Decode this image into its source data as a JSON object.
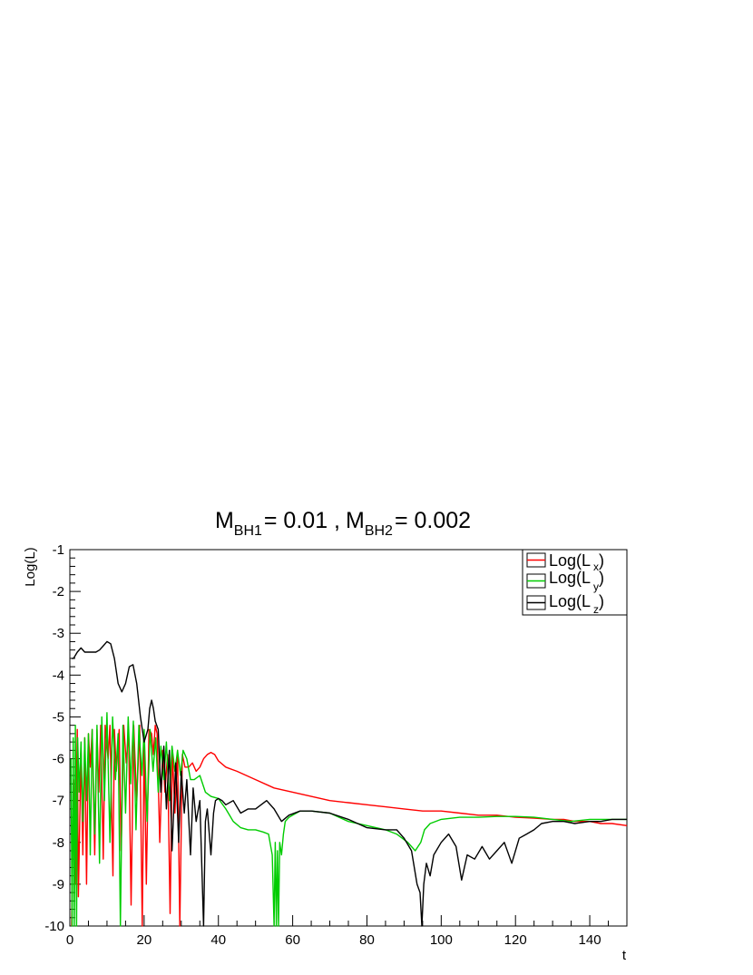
{
  "chart_data": {
    "type": "line",
    "title": {
      "m1_symbol": "M",
      "m1_subscript": "BH1",
      "m1_value": "= 0.01 ,",
      "m2_symbol": "M",
      "m2_subscript": "BH2",
      "m2_value": "= 0.002"
    },
    "xlabel": "t",
    "ylabel": "Log(L)",
    "xlim": [
      0,
      150
    ],
    "ylim": [
      -10,
      -1
    ],
    "xticks": [
      "0",
      "20",
      "40",
      "60",
      "80",
      "100",
      "120",
      "140"
    ],
    "yticks": [
      "-1",
      "-2",
      "-3",
      "-4",
      "-5",
      "-6",
      "-7",
      "-8",
      "-9",
      "-10"
    ],
    "legend": {
      "placement": "top-right"
    },
    "series": [
      {
        "name_main": "Log(L",
        "name_sub": "x",
        "name_end": ")",
        "color": "#ff0000",
        "x": [
          0.5,
          1.0,
          1.4,
          2.0,
          2.3,
          3.0,
          3.5,
          4.0,
          4.5,
          5.0,
          5.5,
          6.0,
          6.7,
          7.3,
          7.8,
          8.3,
          9.0,
          9.5,
          10.3,
          10.8,
          11.6,
          12.0,
          12.5,
          13.3,
          13.8,
          14.5,
          15.2,
          15.8,
          16.5,
          17.2,
          18.0,
          18.8,
          19.5,
          20.0,
          20.6,
          21.3,
          22.0,
          22.5,
          23.0,
          23.5,
          24.2,
          25.0,
          25.6,
          26.3,
          27.0,
          27.6,
          28.3,
          29.0,
          29.6,
          30.3,
          31.0,
          32.0,
          33.0,
          34.0,
          35.0,
          36.0,
          37.0,
          38.0,
          39.0,
          40.0,
          42.0,
          45.0,
          50.0,
          55.0,
          60.0,
          65.0,
          70.0,
          75.0,
          80.0,
          85.0,
          90.0,
          95.0,
          100.0,
          105.0,
          110.0,
          115.0,
          120.0,
          125.0,
          130.0,
          133.0,
          136.0,
          140.0,
          143.0,
          146.0,
          150.0
        ],
        "y": [
          -10.0,
          -6.5,
          -9.0,
          -5.3,
          -9.3,
          -5.8,
          -8.3,
          -5.5,
          -9.0,
          -5.4,
          -6.2,
          -5.3,
          -8.3,
          -5.3,
          -6.8,
          -5.2,
          -8.4,
          -5.2,
          -6.0,
          -5.2,
          -8.8,
          -5.3,
          -6.3,
          -5.3,
          -8.2,
          -5.2,
          -6.1,
          -5.3,
          -9.5,
          -5.2,
          -7.0,
          -5.2,
          -10.0,
          -5.5,
          -9.0,
          -5.3,
          -5.4,
          -5.9,
          -5.2,
          -5.4,
          -8.0,
          -5.8,
          -6.8,
          -5.9,
          -9.7,
          -5.8,
          -7.3,
          -5.8,
          -10.0,
          -5.9,
          -6.2,
          -6.2,
          -6.1,
          -6.3,
          -6.2,
          -6.0,
          -5.9,
          -5.85,
          -5.9,
          -6.05,
          -6.2,
          -6.3,
          -6.5,
          -6.7,
          -6.8,
          -6.9,
          -7.0,
          -7.05,
          -7.1,
          -7.15,
          -7.2,
          -7.25,
          -7.25,
          -7.3,
          -7.35,
          -7.35,
          -7.4,
          -7.42,
          -7.45,
          -7.45,
          -7.5,
          -7.5,
          -7.55,
          -7.55,
          -7.6
        ]
      },
      {
        "name_main": "Log(L",
        "name_sub": "y",
        "name_end": ")",
        "color": "#00cc00",
        "x": [
          0.3,
          0.6,
          0.9,
          1.2,
          1.5,
          1.8,
          2.1,
          2.5,
          3.0,
          3.5,
          4.0,
          4.5,
          5.0,
          5.5,
          6.0,
          6.7,
          7.3,
          8.0,
          8.6,
          9.3,
          10.0,
          10.8,
          11.5,
          12.3,
          13.0,
          13.6,
          14.3,
          15.0,
          15.7,
          16.4,
          17.1,
          17.8,
          18.6,
          19.4,
          20.0,
          20.8,
          21.6,
          22.4,
          23.1,
          23.8,
          24.5,
          25.3,
          26.0,
          26.8,
          27.5,
          28.3,
          29.0,
          29.8,
          30.5,
          31.5,
          32.5,
          33.5,
          35.0,
          36.5,
          38.0,
          40.0,
          42.0,
          44.0,
          46.0,
          48.0,
          50.0,
          52.0,
          53.5,
          54.5,
          55.0,
          55.3,
          55.6,
          55.9,
          56.2,
          56.5,
          57.0,
          57.5,
          58.0,
          59.0,
          60.0,
          62.0,
          65.0,
          70.0,
          75.0,
          80.0,
          85.0,
          88.0,
          91.0,
          93.0,
          94.5,
          95.5,
          97.0,
          100.0,
          105.0,
          110.0,
          115.0,
          120.0,
          125.0,
          130.0,
          135.0,
          140.0,
          145.0,
          150.0
        ],
        "y": [
          -6.0,
          -10.0,
          -5.5,
          -10.0,
          -5.2,
          -10.0,
          -5.5,
          -6.8,
          -5.6,
          -7.5,
          -5.5,
          -7.0,
          -5.4,
          -8.3,
          -5.3,
          -7.8,
          -5.2,
          -8.5,
          -5.0,
          -7.0,
          -4.9,
          -8.0,
          -5.0,
          -6.5,
          -5.4,
          -10.0,
          -5.2,
          -7.3,
          -5.0,
          -6.6,
          -5.1,
          -7.7,
          -5.2,
          -6.4,
          -5.3,
          -7.5,
          -5.3,
          -6.3,
          -5.5,
          -6.8,
          -5.7,
          -6.5,
          -5.6,
          -7.0,
          -5.7,
          -6.3,
          -5.8,
          -6.4,
          -5.8,
          -6.0,
          -6.5,
          -6.5,
          -6.4,
          -6.8,
          -6.9,
          -6.95,
          -7.2,
          -7.5,
          -7.65,
          -7.7,
          -7.7,
          -7.75,
          -7.8,
          -8.3,
          -10.0,
          -8.0,
          -10.0,
          -8.2,
          -10.0,
          -8.0,
          -8.3,
          -7.8,
          -7.5,
          -7.4,
          -7.35,
          -7.25,
          -7.25,
          -7.3,
          -7.5,
          -7.6,
          -7.7,
          -7.8,
          -8.0,
          -8.2,
          -8.0,
          -7.7,
          -7.55,
          -7.45,
          -7.4,
          -7.4,
          -7.38,
          -7.38,
          -7.4,
          -7.45,
          -7.5,
          -7.45,
          -7.45,
          -7.45
        ]
      },
      {
        "name_main": "Log(L",
        "name_sub": "z",
        "name_end": ")",
        "color": "#000000",
        "x": [
          0.5,
          1.0,
          2.0,
          3.0,
          4.0,
          5.0,
          6.0,
          7.0,
          8.0,
          9.0,
          10.0,
          11.0,
          12.0,
          13.0,
          14.0,
          15.0,
          16.0,
          17.0,
          18.0,
          19.0,
          20.0,
          21.0,
          21.5,
          22.0,
          22.5,
          23.0,
          23.8,
          24.5,
          25.3,
          26.0,
          26.8,
          27.5,
          28.5,
          29.3,
          30.0,
          30.8,
          31.5,
          32.5,
          33.2,
          34.0,
          35.0,
          36.0,
          36.5,
          37.0,
          38.0,
          38.7,
          39.2,
          40.0,
          41.0,
          42.0,
          44.0,
          46.0,
          48.0,
          50.0,
          53.0,
          55.0,
          57.0,
          59.0,
          62.0,
          65.0,
          70.0,
          75.0,
          80.0,
          85.0,
          88.0,
          90.0,
          92.0,
          93.5,
          94.3,
          94.8,
          95.3,
          96.0,
          97.0,
          98.0,
          100.0,
          102.0,
          104.0,
          105.5,
          107.0,
          109.0,
          111.0,
          113.0,
          115.0,
          117.0,
          119.0,
          121.0,
          123.0,
          125.0,
          127.0,
          130.0,
          133.0,
          136.0,
          140.0,
          143.0,
          146.0,
          150.0
        ],
        "y": [
          -3.6,
          -3.6,
          -3.45,
          -3.35,
          -3.45,
          -3.45,
          -3.45,
          -3.45,
          -3.4,
          -3.3,
          -3.2,
          -3.25,
          -3.6,
          -4.2,
          -4.4,
          -4.2,
          -3.8,
          -3.75,
          -4.2,
          -5.0,
          -5.6,
          -5.3,
          -4.8,
          -4.6,
          -4.8,
          -5.1,
          -5.3,
          -6.8,
          -5.7,
          -7.2,
          -5.8,
          -8.2,
          -6.1,
          -8.0,
          -6.3,
          -7.3,
          -6.5,
          -8.3,
          -6.7,
          -7.5,
          -7.0,
          -10.0,
          -7.5,
          -7.2,
          -8.3,
          -7.3,
          -7.0,
          -6.95,
          -7.0,
          -7.1,
          -7.0,
          -7.3,
          -7.2,
          -7.2,
          -7.0,
          -7.2,
          -7.5,
          -7.35,
          -7.25,
          -7.25,
          -7.3,
          -7.45,
          -7.65,
          -7.7,
          -7.7,
          -7.9,
          -8.2,
          -9.0,
          -9.2,
          -10.0,
          -9.0,
          -8.5,
          -8.8,
          -8.3,
          -8.0,
          -7.8,
          -8.1,
          -8.9,
          -8.3,
          -8.4,
          -8.1,
          -8.4,
          -8.2,
          -8.0,
          -8.5,
          -7.9,
          -7.8,
          -7.7,
          -7.55,
          -7.5,
          -7.5,
          -7.55,
          -7.5,
          -7.5,
          -7.45,
          -7.45
        ]
      }
    ]
  }
}
